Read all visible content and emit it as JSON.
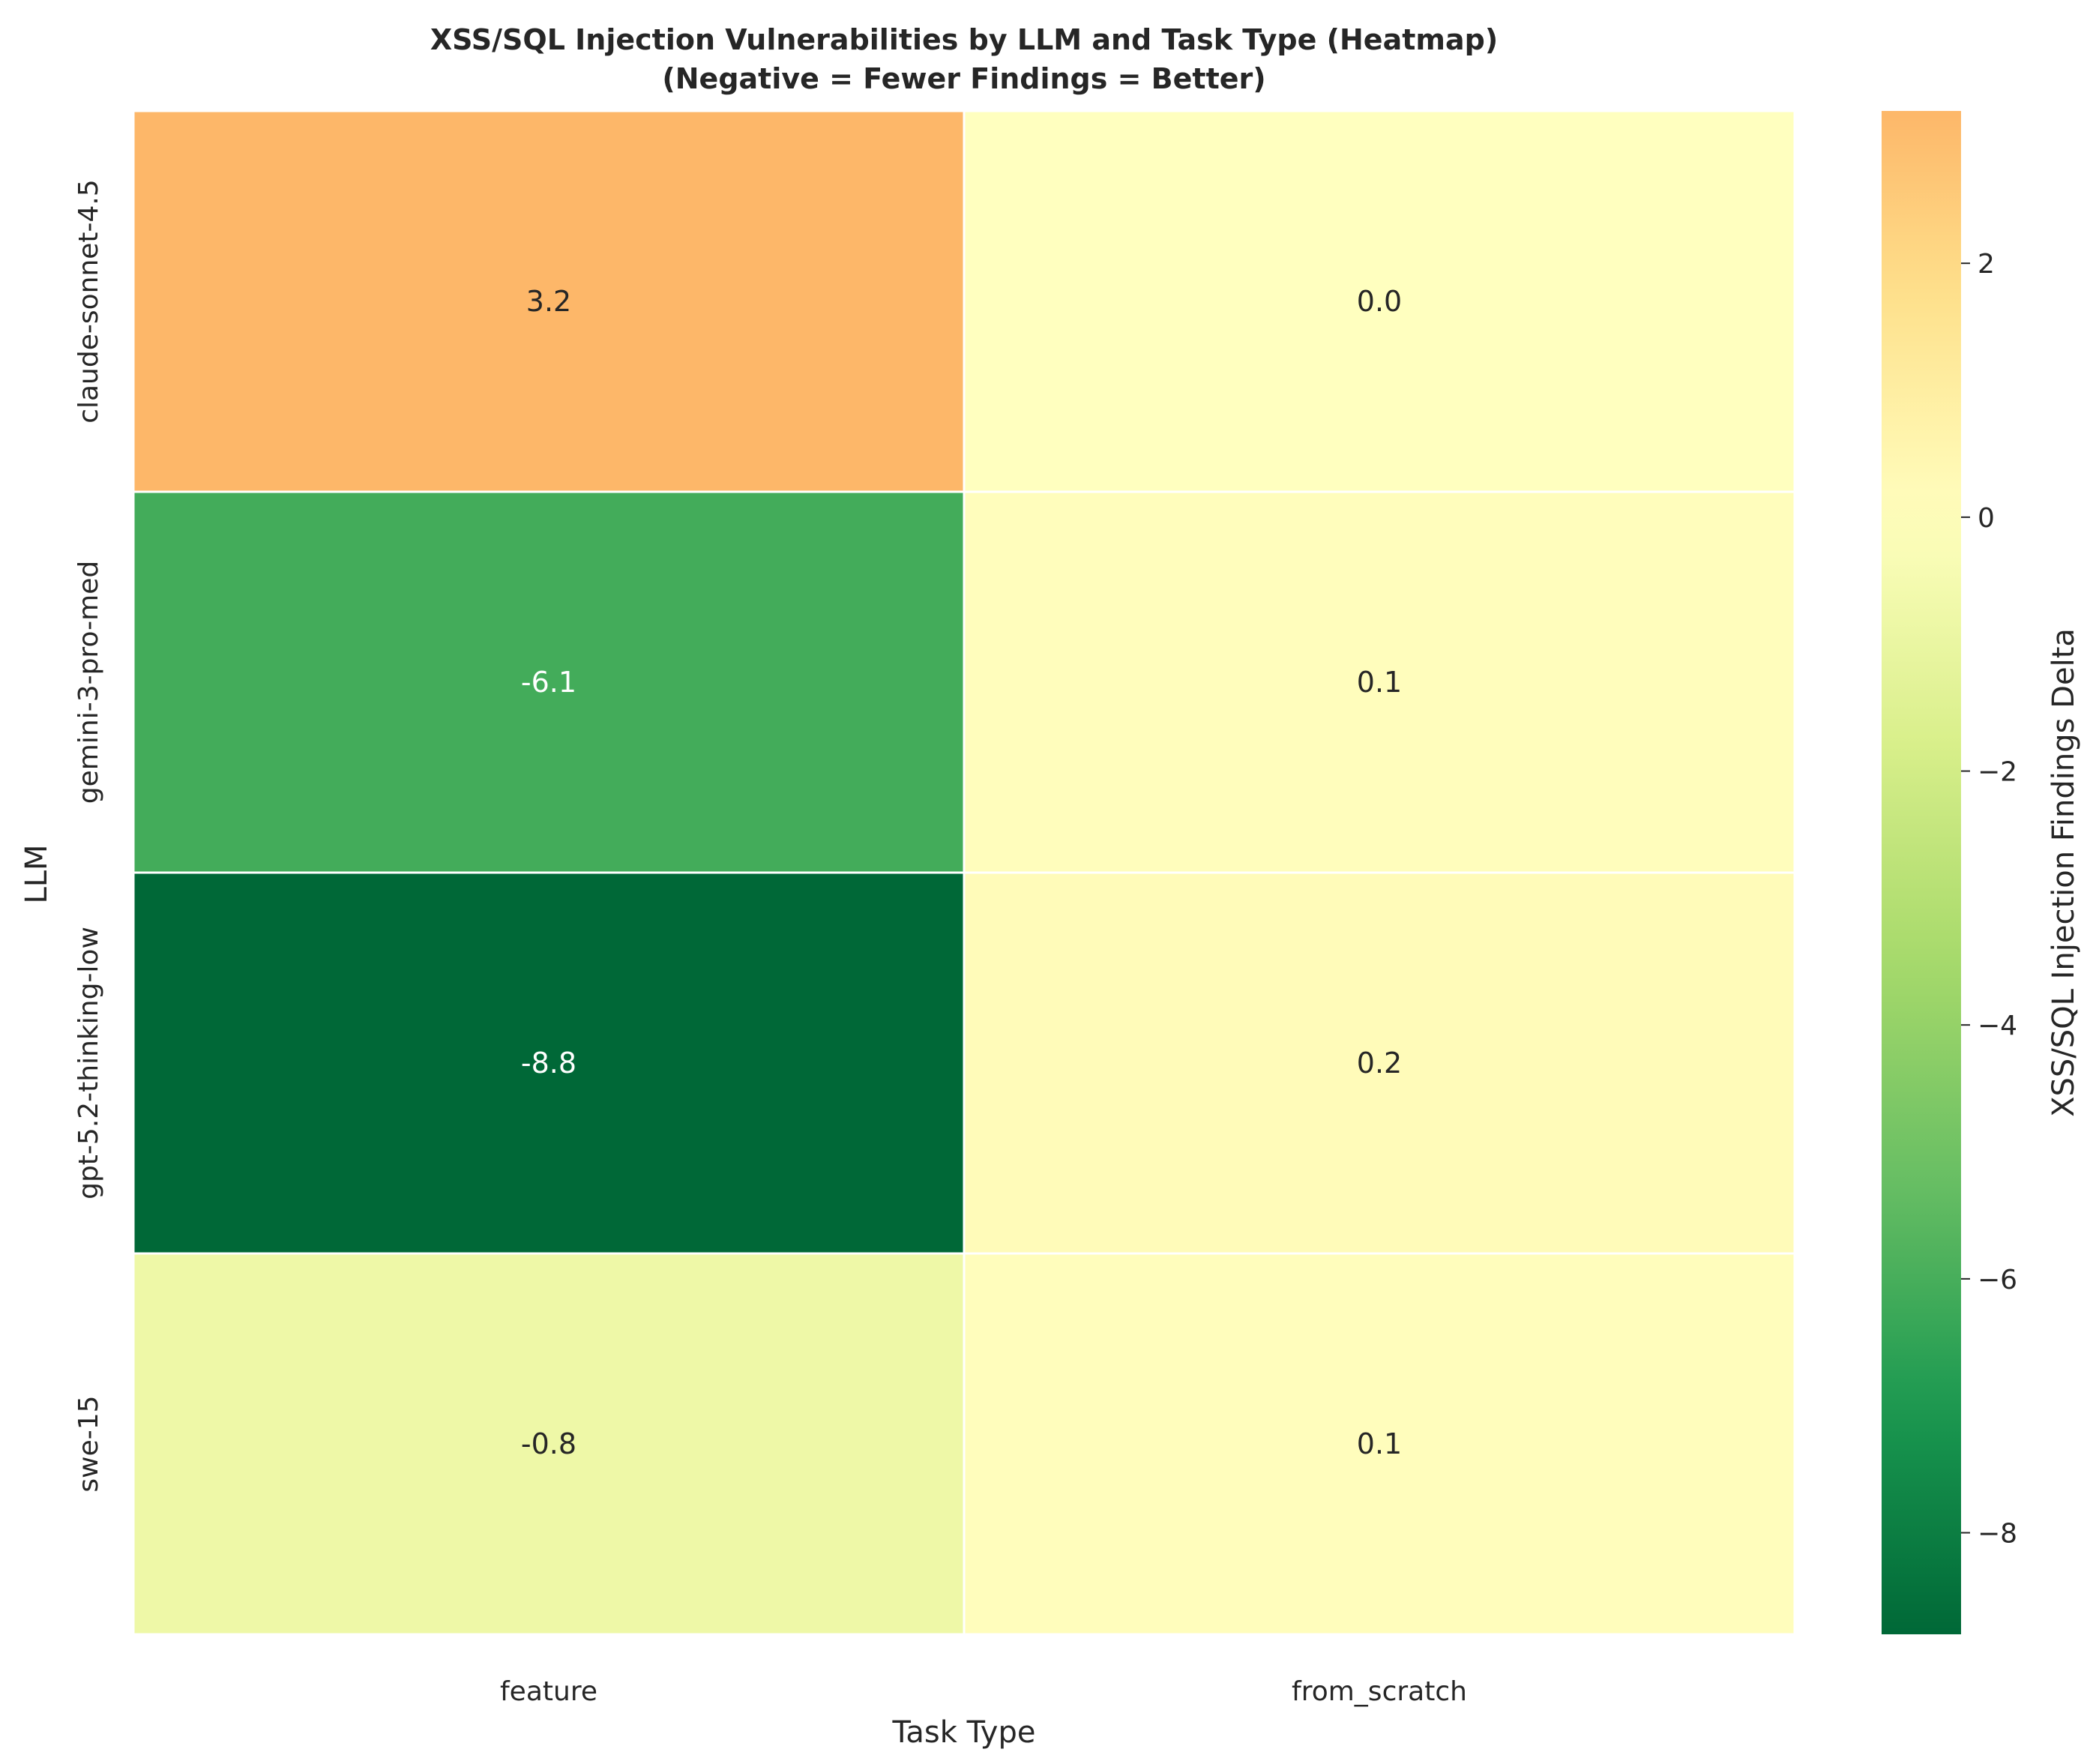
{
  "chart_data": {
    "type": "heatmap",
    "title": "XSS/SQL Injection Vulnerabilities by LLM and Task Type (Heatmap)",
    "subtitle": "(Negative = Fewer Findings = Better)",
    "xlabel": "Task Type",
    "ylabel": "LLM",
    "x_categories": [
      "feature",
      "from_scratch"
    ],
    "y_categories": [
      "claude-sonnet-4.5",
      "gemini-3-pro-med",
      "gpt-5.2-thinking-low",
      "swe-15"
    ],
    "values": [
      [
        3.2,
        0.0
      ],
      [
        -6.1,
        0.1
      ],
      [
        -8.8,
        0.2
      ],
      [
        -0.8,
        0.1
      ]
    ],
    "cell_labels": [
      [
        "3.2",
        "0.0"
      ],
      [
        "-6.1",
        "0.1"
      ],
      [
        "-8.8",
        "0.2"
      ],
      [
        "-0.8",
        "0.1"
      ]
    ],
    "colorbar": {
      "label": "XSS/SQL Injection Findings Delta",
      "vmin": -8.8,
      "vmax": 3.2,
      "center": 0,
      "colormap": "RdYlGn_r",
      "ticks": [
        2,
        0,
        -2,
        -4,
        -6,
        -8
      ],
      "tick_labels": [
        "2",
        "0",
        "−2",
        "−4",
        "−6",
        "−8"
      ]
    }
  }
}
